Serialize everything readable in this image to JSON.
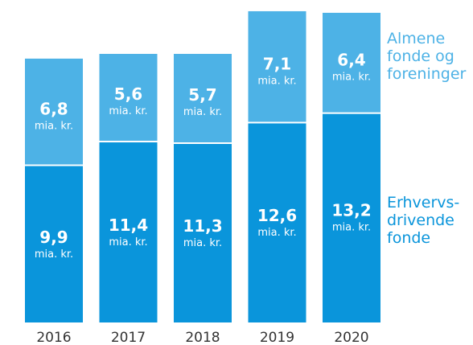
{
  "chart_data": {
    "type": "bar",
    "stacked": true,
    "categories": [
      "2016",
      "2017",
      "2018",
      "2019",
      "2020"
    ],
    "series": [
      {
        "name": "Erhvervs-drivende fonde",
        "legend_lines": [
          "Erhvervs-",
          "drivende",
          "fonde"
        ],
        "values": [
          9.9,
          11.4,
          11.3,
          12.6,
          13.2
        ],
        "labels": [
          "9,9",
          "11,4",
          "11,3",
          "12,6",
          "13,2"
        ],
        "color": "#0a95db"
      },
      {
        "name": "Almene fonde og foreninger",
        "legend_lines": [
          "Almene",
          "fonde og",
          "foreninger"
        ],
        "values": [
          6.8,
          5.6,
          5.7,
          7.1,
          6.4
        ],
        "labels": [
          "6,8",
          "5,6",
          "5,7",
          "7,1",
          "6,4"
        ],
        "color": "#4db2e6"
      }
    ],
    "unit_label": "mia. kr.",
    "ylim": [
      0,
      19.8
    ],
    "grid": false,
    "legend_position": "right"
  }
}
